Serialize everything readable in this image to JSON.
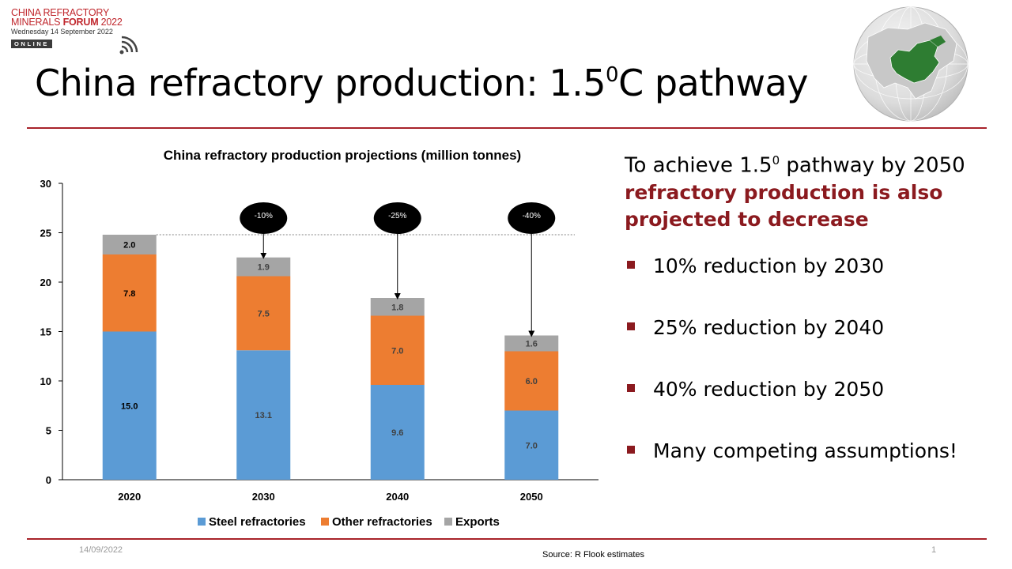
{
  "logo": {
    "line1": "CHINA REFRACTORY",
    "line2a": "MINERALS ",
    "line2b": "FORUM",
    "line2c": " 2022",
    "date": "Wednesday 14 September 2022",
    "badge": "ONLINE"
  },
  "slide": {
    "title_main": "China refractory production: 1.5",
    "title_sup": "0",
    "title_end": "C pathway"
  },
  "rhs": {
    "intro_a": "To achieve 1.5",
    "intro_sup": "0",
    "intro_b": " pathway by 2050",
    "highlight": "refractory production is also projected to decrease",
    "bullets": [
      "10% reduction by 2030",
      "25% reduction by 2040",
      "40% reduction by 2050",
      "Many competing assumptions!"
    ],
    "bullet_color": "#8b1a1f"
  },
  "footer": {
    "date": "14/09/2022",
    "source": "Source: R Flook estimates",
    "page": "1"
  },
  "colors": {
    "accent": "#a8232a",
    "steel": "#5b9bd5",
    "other": "#ed7d31",
    "exports": "#a5a5a5",
    "china_green": "#2e7d32"
  },
  "chart_data": {
    "type": "bar",
    "stacked": true,
    "title": "China refractory production projections (million tonnes)",
    "categories": [
      "2020",
      "2030",
      "2040",
      "2050"
    ],
    "ylim": [
      0,
      30
    ],
    "yticks": [
      "0",
      "5",
      "10",
      "15",
      "20",
      "25",
      "30"
    ],
    "series": [
      {
        "name": "Steel refractories",
        "color": "#5b9bd5",
        "values": [
          15.0,
          13.1,
          9.6,
          7.0
        ],
        "labels": [
          "15.0",
          "13.1",
          "9.6",
          "7.0"
        ]
      },
      {
        "name": "Other refractories",
        "color": "#ed7d31",
        "values": [
          7.8,
          7.5,
          7.0,
          6.0
        ],
        "labels": [
          "7.8",
          "7.5",
          "7.0",
          "6.0"
        ]
      },
      {
        "name": "Exports",
        "color": "#a5a5a5",
        "values": [
          2.0,
          1.9,
          1.8,
          1.6
        ],
        "labels": [
          "2.0",
          "1.9",
          "1.8",
          "1.6"
        ]
      }
    ],
    "reference_line": 24.8,
    "callouts": [
      {
        "category": "2030",
        "label": "-10%"
      },
      {
        "category": "2040",
        "label": "-25%"
      },
      {
        "category": "2050",
        "label": "-40%"
      }
    ],
    "legend_position": "bottom",
    "grid": false
  }
}
